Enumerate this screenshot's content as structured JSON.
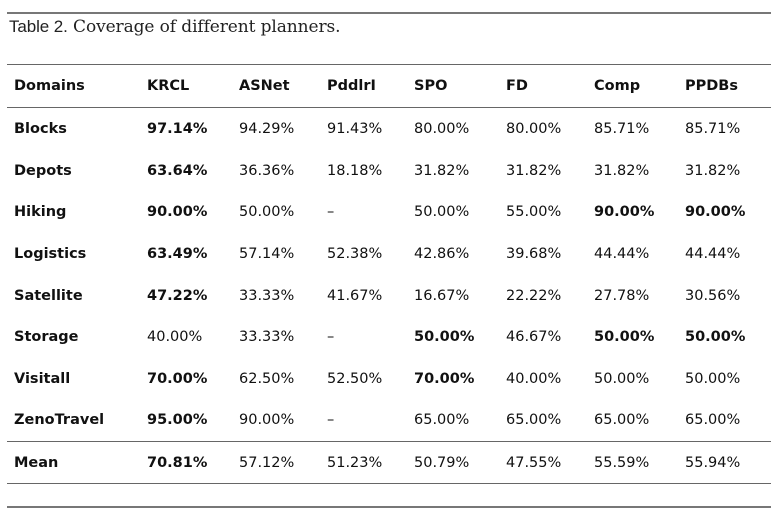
{
  "caption": {
    "label": "Table 2.",
    "text": " Coverage of different planners."
  },
  "headers": [
    "Domains",
    "KRCL",
    "ASNet",
    "PddlrI",
    "SPO",
    "FD",
    "Comp",
    "PPDBs"
  ],
  "rows": [
    {
      "name": "Blocks",
      "cells": [
        {
          "v": "97.14%",
          "b": true
        },
        {
          "v": "94.29%"
        },
        {
          "v": "91.43%"
        },
        {
          "v": "80.00%"
        },
        {
          "v": "80.00%"
        },
        {
          "v": "85.71%"
        },
        {
          "v": "85.71%"
        }
      ]
    },
    {
      "name": "Depots",
      "cells": [
        {
          "v": "63.64%",
          "b": true
        },
        {
          "v": "36.36%"
        },
        {
          "v": "18.18%"
        },
        {
          "v": "31.82%"
        },
        {
          "v": "31.82%"
        },
        {
          "v": "31.82%"
        },
        {
          "v": "31.82%"
        }
      ]
    },
    {
      "name": "Hiking",
      "cells": [
        {
          "v": "90.00%",
          "b": true
        },
        {
          "v": "50.00%"
        },
        {
          "v": "–"
        },
        {
          "v": "50.00%"
        },
        {
          "v": "55.00%"
        },
        {
          "v": "90.00%",
          "b": true
        },
        {
          "v": "90.00%",
          "b": true
        }
      ]
    },
    {
      "name": "Logistics",
      "cells": [
        {
          "v": "63.49%",
          "b": true
        },
        {
          "v": "57.14%"
        },
        {
          "v": "52.38%"
        },
        {
          "v": "42.86%"
        },
        {
          "v": "39.68%"
        },
        {
          "v": "44.44%"
        },
        {
          "v": "44.44%"
        }
      ]
    },
    {
      "name": "Satellite",
      "cells": [
        {
          "v": "47.22%",
          "b": true
        },
        {
          "v": "33.33%"
        },
        {
          "v": "41.67%"
        },
        {
          "v": "16.67%"
        },
        {
          "v": "22.22%"
        },
        {
          "v": "27.78%"
        },
        {
          "v": "30.56%"
        }
      ]
    },
    {
      "name": "Storage",
      "cells": [
        {
          "v": "40.00%"
        },
        {
          "v": "33.33%"
        },
        {
          "v": "–"
        },
        {
          "v": "50.00%",
          "b": true
        },
        {
          "v": "46.67%"
        },
        {
          "v": "50.00%",
          "b": true
        },
        {
          "v": "50.00%",
          "b": true
        }
      ]
    },
    {
      "name": "Visitall",
      "cells": [
        {
          "v": "70.00%",
          "b": true
        },
        {
          "v": "62.50%"
        },
        {
          "v": "52.50%"
        },
        {
          "v": "70.00%",
          "b": true
        },
        {
          "v": "40.00%"
        },
        {
          "v": "50.00%"
        },
        {
          "v": "50.00%"
        }
      ]
    },
    {
      "name": "ZenoTravel",
      "cells": [
        {
          "v": "95.00%",
          "b": true
        },
        {
          "v": "90.00%"
        },
        {
          "v": "–"
        },
        {
          "v": "65.00%"
        },
        {
          "v": "65.00%"
        },
        {
          "v": "65.00%"
        },
        {
          "v": "65.00%"
        }
      ]
    }
  ],
  "mean": {
    "name": "Mean",
    "cells": [
      {
        "v": "70.81%",
        "b": true
      },
      {
        "v": "57.12%"
      },
      {
        "v": "51.23%"
      },
      {
        "v": "50.79%"
      },
      {
        "v": "47.55%"
      },
      {
        "v": "55.59%"
      },
      {
        "v": "55.94%"
      }
    ]
  }
}
